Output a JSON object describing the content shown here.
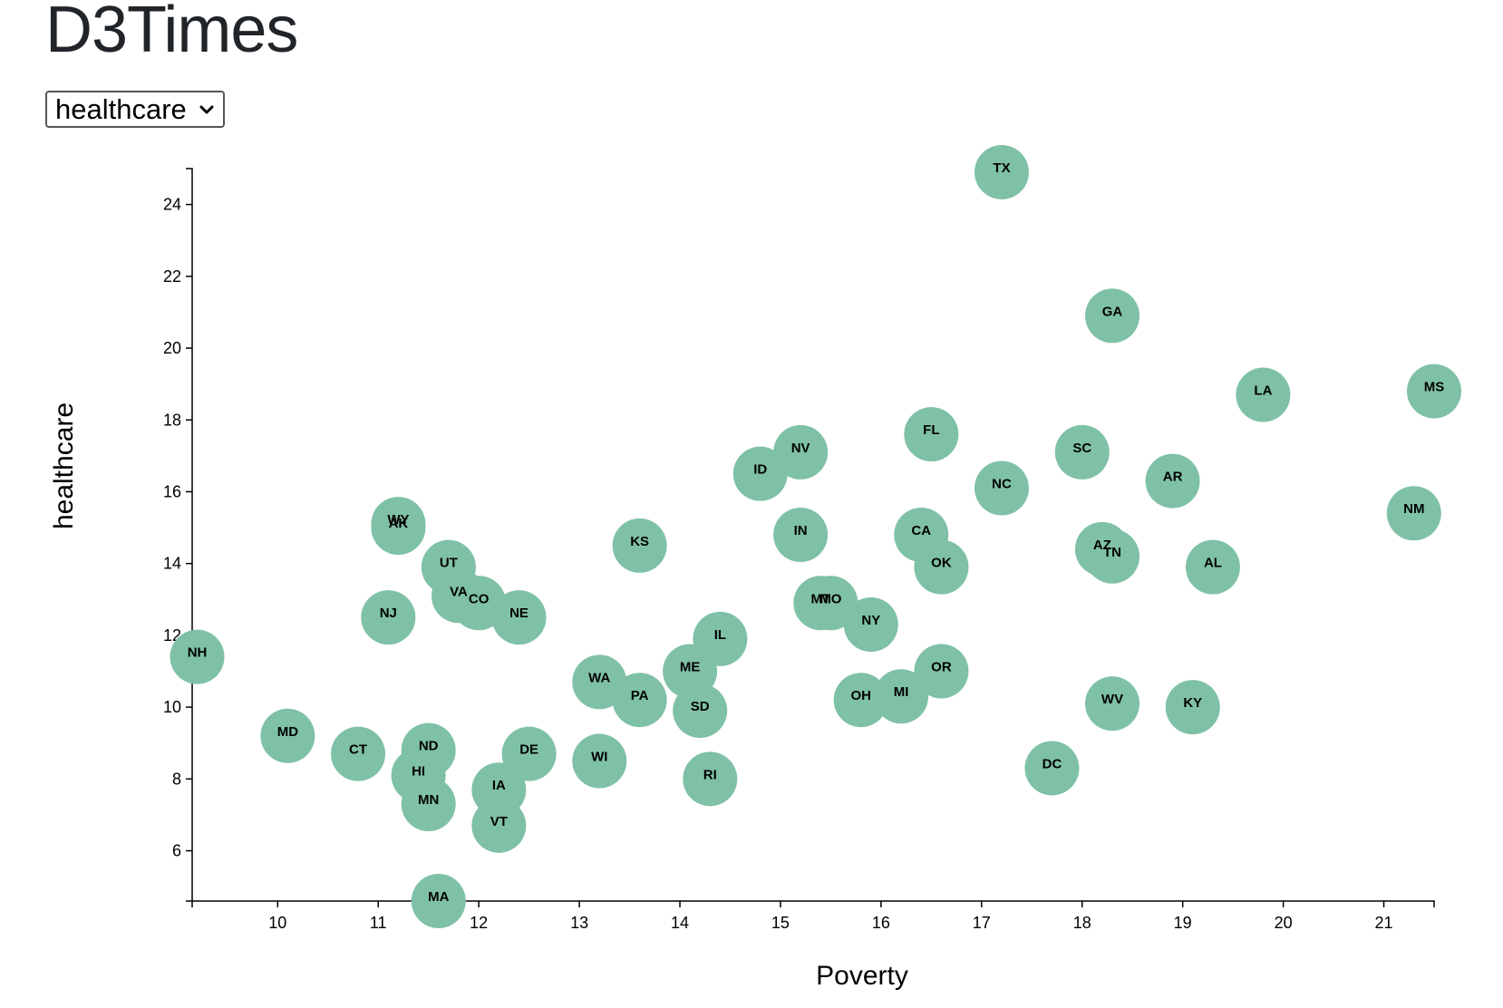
{
  "header": {
    "title": "D3Times"
  },
  "controls": {
    "y_select_value": "healthcare",
    "chevron_icon": "chevron-down-icon"
  },
  "colors": {
    "circle_fill": "#7fc1a6",
    "axis": "#000000",
    "text": "#212529"
  },
  "chart_data": {
    "type": "scatter",
    "xlabel": "Poverty",
    "ylabel": "healthcare",
    "xlim": [
      9.15,
      21.5
    ],
    "ylim": [
      4.6,
      25.0
    ],
    "xticks": [
      10,
      11,
      12,
      13,
      14,
      15,
      16,
      17,
      18,
      19,
      20,
      21
    ],
    "yticks": [
      6,
      8,
      10,
      12,
      14,
      16,
      18,
      20,
      22,
      24
    ],
    "grid": false,
    "points": [
      {
        "label": "TX",
        "x": 17.2,
        "y": 24.9
      },
      {
        "label": "GA",
        "x": 18.3,
        "y": 20.9
      },
      {
        "label": "LA",
        "x": 19.8,
        "y": 18.7
      },
      {
        "label": "MS",
        "x": 21.5,
        "y": 18.8
      },
      {
        "label": "FL",
        "x": 16.5,
        "y": 17.6
      },
      {
        "label": "SC",
        "x": 18.0,
        "y": 17.1
      },
      {
        "label": "NV",
        "x": 15.2,
        "y": 17.1
      },
      {
        "label": "ID",
        "x": 14.8,
        "y": 16.5
      },
      {
        "label": "NC",
        "x": 17.2,
        "y": 16.1
      },
      {
        "label": "AR",
        "x": 18.9,
        "y": 16.3
      },
      {
        "label": "NM",
        "x": 21.3,
        "y": 15.4
      },
      {
        "label": "WY",
        "x": 11.2,
        "y": 15.1
      },
      {
        "label": "AK",
        "x": 11.2,
        "y": 15.0
      },
      {
        "label": "KS",
        "x": 13.6,
        "y": 14.5
      },
      {
        "label": "IN",
        "x": 15.2,
        "y": 14.8
      },
      {
        "label": "CA",
        "x": 16.4,
        "y": 14.8
      },
      {
        "label": "OK",
        "x": 16.6,
        "y": 13.9
      },
      {
        "label": "AZ",
        "x": 18.2,
        "y": 14.4
      },
      {
        "label": "TN",
        "x": 18.3,
        "y": 14.2
      },
      {
        "label": "AL",
        "x": 19.3,
        "y": 13.9
      },
      {
        "label": "UT",
        "x": 11.7,
        "y": 13.9
      },
      {
        "label": "VA",
        "x": 11.8,
        "y": 13.1
      },
      {
        "label": "CO",
        "x": 12.0,
        "y": 12.9
      },
      {
        "label": "NE",
        "x": 12.4,
        "y": 12.5
      },
      {
        "label": "NJ",
        "x": 11.1,
        "y": 12.5
      },
      {
        "label": "MT",
        "x": 15.4,
        "y": 12.9
      },
      {
        "label": "MO",
        "x": 15.5,
        "y": 12.9
      },
      {
        "label": "NY",
        "x": 15.9,
        "y": 12.3
      },
      {
        "label": "IL",
        "x": 14.4,
        "y": 11.9
      },
      {
        "label": "NH",
        "x": 9.2,
        "y": 11.4
      },
      {
        "label": "OR",
        "x": 16.6,
        "y": 11.0
      },
      {
        "label": "ME",
        "x": 14.1,
        "y": 11.0
      },
      {
        "label": "WA",
        "x": 13.2,
        "y": 10.7
      },
      {
        "label": "PA",
        "x": 13.6,
        "y": 10.2
      },
      {
        "label": "SD",
        "x": 14.2,
        "y": 9.9
      },
      {
        "label": "OH",
        "x": 15.8,
        "y": 10.2
      },
      {
        "label": "MI",
        "x": 16.2,
        "y": 10.3
      },
      {
        "label": "WV",
        "x": 18.3,
        "y": 10.1
      },
      {
        "label": "KY",
        "x": 19.1,
        "y": 10.0
      },
      {
        "label": "MD",
        "x": 10.1,
        "y": 9.2
      },
      {
        "label": "CT",
        "x": 10.8,
        "y": 8.7
      },
      {
        "label": "ND",
        "x": 11.5,
        "y": 8.8
      },
      {
        "label": "DE",
        "x": 12.5,
        "y": 8.7
      },
      {
        "label": "WI",
        "x": 13.2,
        "y": 8.5
      },
      {
        "label": "DC",
        "x": 17.7,
        "y": 8.3
      },
      {
        "label": "HI",
        "x": 11.4,
        "y": 8.1
      },
      {
        "label": "RI",
        "x": 14.3,
        "y": 8.0
      },
      {
        "label": "IA",
        "x": 12.2,
        "y": 7.7
      },
      {
        "label": "MN",
        "x": 11.5,
        "y": 7.3
      },
      {
        "label": "VT",
        "x": 12.2,
        "y": 6.7
      },
      {
        "label": "MA",
        "x": 11.6,
        "y": 4.6
      }
    ]
  }
}
